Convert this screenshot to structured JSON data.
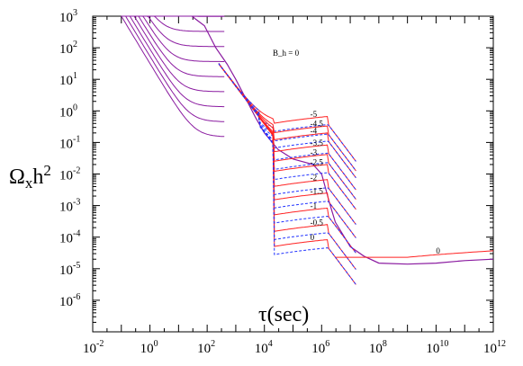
{
  "chart_data": {
    "type": "line",
    "title": "",
    "xlabel": "τ(sec)",
    "ylabel": "Ω_x h^2",
    "x_scale": "log",
    "y_scale": "log",
    "xlim": [
      0.01,
      1000000000000.0
    ],
    "ylim": [
      1e-07,
      1000.0
    ],
    "x_tick_labels": [
      {
        "base": "10",
        "exp": "-2"
      },
      {
        "base": "10",
        "exp": "0"
      },
      {
        "base": "10",
        "exp": "2"
      },
      {
        "base": "10",
        "exp": "4"
      },
      {
        "base": "10",
        "exp": "6"
      },
      {
        "base": "10",
        "exp": "8"
      },
      {
        "base": "10",
        "exp": "10"
      },
      {
        "base": "10",
        "exp": "12"
      }
    ],
    "y_tick_labels": [
      {
        "base": "10",
        "exp": "3"
      },
      {
        "base": "10",
        "exp": "2"
      },
      {
        "base": "10",
        "exp": "1"
      },
      {
        "base": "10",
        "exp": "0"
      },
      {
        "base": "10",
        "exp": "-1"
      },
      {
        "base": "10",
        "exp": "-2"
      },
      {
        "base": "10",
        "exp": "-3"
      },
      {
        "base": "10",
        "exp": "-4"
      },
      {
        "base": "10",
        "exp": "-5"
      },
      {
        "base": "10",
        "exp": "-6"
      }
    ],
    "grid": false,
    "colors": {
      "solid": "#ff2222",
      "dashed": "#2233ff",
      "envelope": "#8a1aa0"
    },
    "envelope": [
      [
        30,
        1000
      ],
      [
        40,
        800
      ],
      [
        80,
        500
      ],
      [
        200,
        100
      ],
      [
        500,
        30
      ],
      [
        1000,
        10
      ],
      [
        2000,
        3
      ],
      [
        5000,
        0.6
      ],
      [
        10000,
        0.2
      ],
      [
        30000,
        0.06
      ],
      [
        100000,
        0.03
      ],
      [
        500000,
        0.02
      ],
      [
        1000000,
        0.01
      ],
      [
        2000000,
        0.001
      ],
      [
        3000000,
        0.0003
      ],
      [
        10000000,
        5e-05
      ],
      [
        30000000,
        2.5e-05
      ],
      [
        100000000,
        1.5e-05
      ],
      [
        1000000000,
        1.4e-05
      ],
      [
        10000000000,
        1.5e-05
      ],
      [
        100000000000,
        1.8e-05
      ],
      [
        1000000000000,
        2e-05
      ]
    ],
    "envelope_label": "B_h = 0",
    "series": [
      {
        "name": "-5",
        "plateau": 0.4
      },
      {
        "name": "-4.5",
        "plateau": 0.2
      },
      {
        "name": "-4",
        "plateau": 0.12
      },
      {
        "name": "-3.5",
        "plateau": 0.05
      },
      {
        "name": "-3",
        "plateau": 0.025
      },
      {
        "name": "-2.5",
        "plateau": 0.012
      },
      {
        "name": "-2",
        "plateau": 0.004
      },
      {
        "name": "-1.5",
        "plateau": 0.0015
      },
      {
        "name": "-1",
        "plateau": 0.0005
      },
      {
        "name": "-0.5",
        "plateau": 0.00015
      },
      {
        "name": "0",
        "plateau": 5e-05
      }
    ],
    "annotations": [
      {
        "text": "0",
        "x": 10000000000.0,
        "y": 3e-05
      }
    ]
  }
}
